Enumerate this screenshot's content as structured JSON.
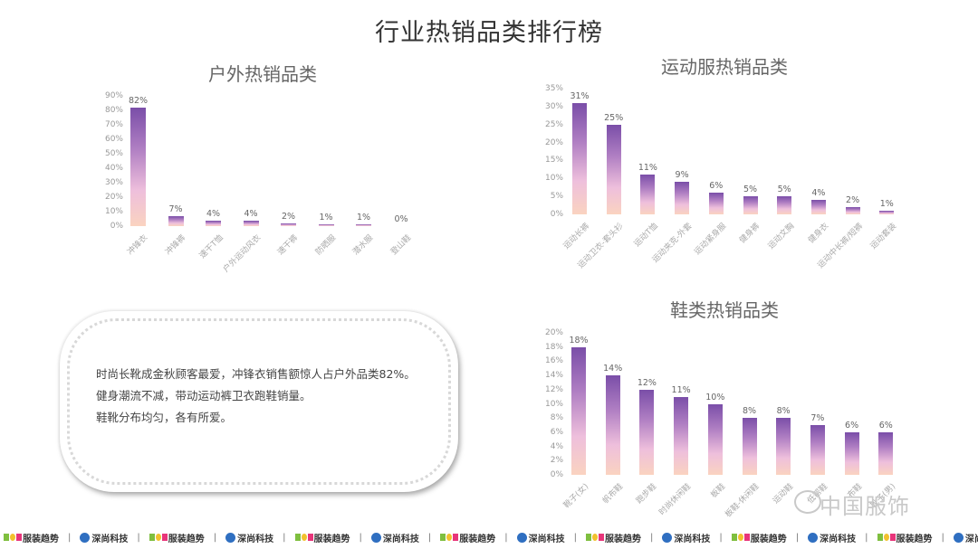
{
  "page": {
    "title": "行业热销品类排行榜",
    "note_lines": [
      "时尚长靴成金秋顾客最爱，冲锋衣销售额惊人占户外品类82%。",
      "健身潮流不减，带动运动裤卫衣跑鞋销量。",
      "鞋靴分布均匀，各有所爱。"
    ],
    "watermark": "中国服饰",
    "footer": {
      "pop_label": "服装趋势",
      "sx_label": "深尚科技",
      "separator": "|"
    }
  },
  "colors": {
    "bar_top": "#7a4ea8",
    "bar_bottom": "#fad3c0",
    "text": "#666666"
  },
  "chart_data": [
    {
      "type": "bar",
      "title": "户外热销品类",
      "categories": [
        "冲锋衣",
        "冲锋裤",
        "速干T恤",
        "户外运动风衣",
        "速干裤",
        "防晒服",
        "潜水服",
        "登山鞋"
      ],
      "values": [
        82,
        7,
        4,
        4,
        2,
        1,
        1,
        0
      ],
      "value_labels": [
        "82%",
        "7%",
        "4%",
        "4%",
        "2%",
        "1%",
        "1%",
        "0%"
      ],
      "yticks": [
        "0%",
        "10%",
        "20%",
        "30%",
        "40%",
        "50%",
        "60%",
        "70%",
        "80%",
        "90%"
      ],
      "ylim": [
        0,
        90
      ],
      "xlabel": "",
      "ylabel": "",
      "grid": false,
      "legend": "none"
    },
    {
      "type": "bar",
      "title": "运动服热销品类",
      "categories": [
        "运动长裤",
        "运动卫衣-套头衫",
        "运动T恤",
        "运动夹克-外套",
        "运动紧身服",
        "健身裤",
        "运动文胸",
        "健身衣",
        "运动中长裤/短裤",
        "运动套装"
      ],
      "values": [
        31,
        25,
        11,
        9,
        6,
        5,
        5,
        4,
        2,
        1
      ],
      "value_labels": [
        "31%",
        "25%",
        "11%",
        "9%",
        "6%",
        "5%",
        "5%",
        "4%",
        "2%",
        "1%"
      ],
      "yticks": [
        "0%",
        "5%",
        "10%",
        "15%",
        "20%",
        "25%",
        "30%",
        "35%"
      ],
      "ylim": [
        0,
        35
      ],
      "xlabel": "",
      "ylabel": "",
      "grid": false,
      "legend": "none"
    },
    {
      "type": "bar",
      "title": "鞋类热销品类",
      "categories": [
        "靴子(女)",
        "帆布鞋",
        "跑步鞋",
        "时尚休闲鞋",
        "板鞋",
        "板鞋-休闲鞋",
        "运动鞋",
        "低帮鞋",
        "布鞋",
        "靴子(男)"
      ],
      "values": [
        18,
        14,
        12,
        11,
        10,
        8,
        8,
        7,
        6,
        6
      ],
      "value_labels": [
        "18%",
        "14%",
        "12%",
        "11%",
        "10%",
        "8%",
        "8%",
        "7%",
        "6%",
        "6%"
      ],
      "yticks": [
        "0%",
        "2%",
        "4%",
        "6%",
        "8%",
        "10%",
        "12%",
        "14%",
        "16%",
        "18%",
        "20%"
      ],
      "ylim": [
        0,
        20
      ],
      "xlabel": "",
      "ylabel": "",
      "grid": false,
      "legend": "none"
    }
  ]
}
